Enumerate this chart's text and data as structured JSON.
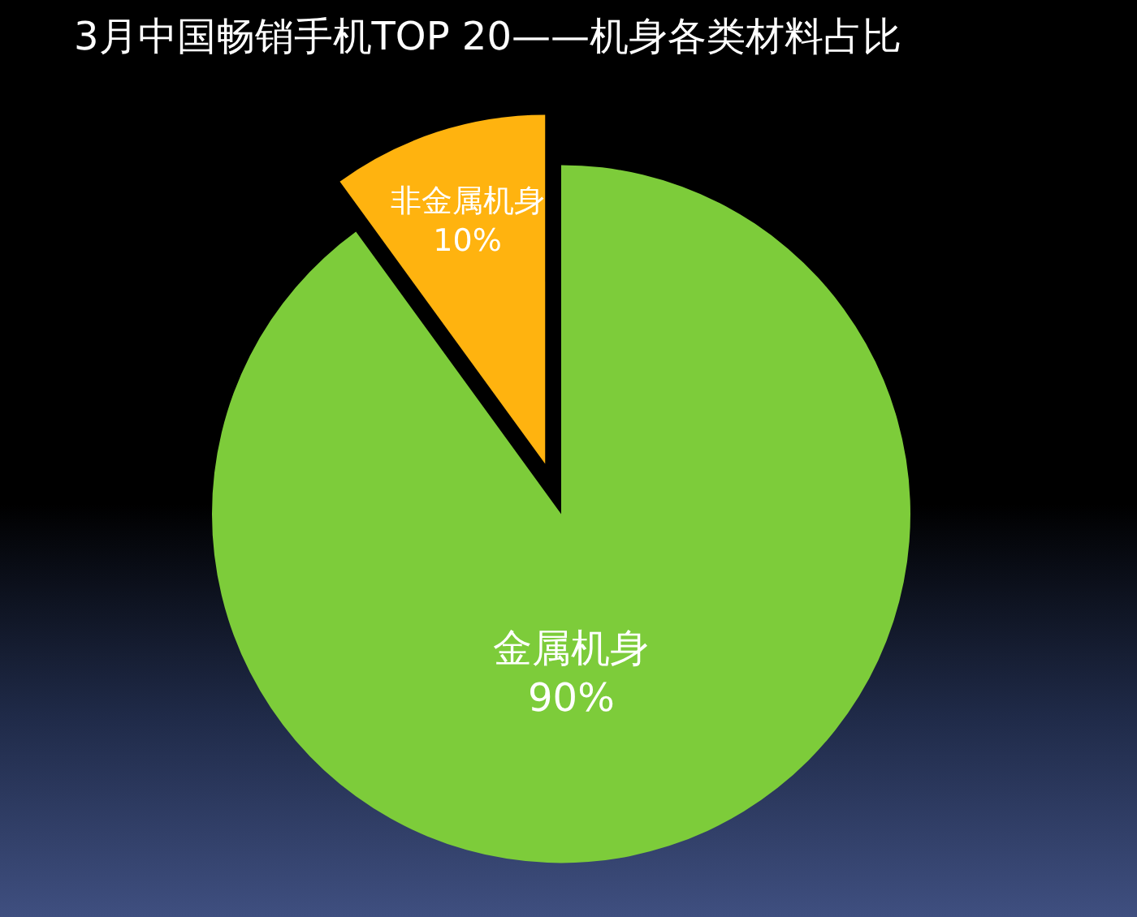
{
  "chart_data": {
    "type": "pie",
    "title": "3月中国畅销手机TOP 20——机身各类材料占比",
    "categories": [
      "金属机身",
      "非金属机身"
    ],
    "values": [
      90,
      10
    ],
    "colors": [
      "#7dcc3a",
      "#ffb30f"
    ],
    "value_labels": [
      "90%",
      "10%"
    ]
  }
}
